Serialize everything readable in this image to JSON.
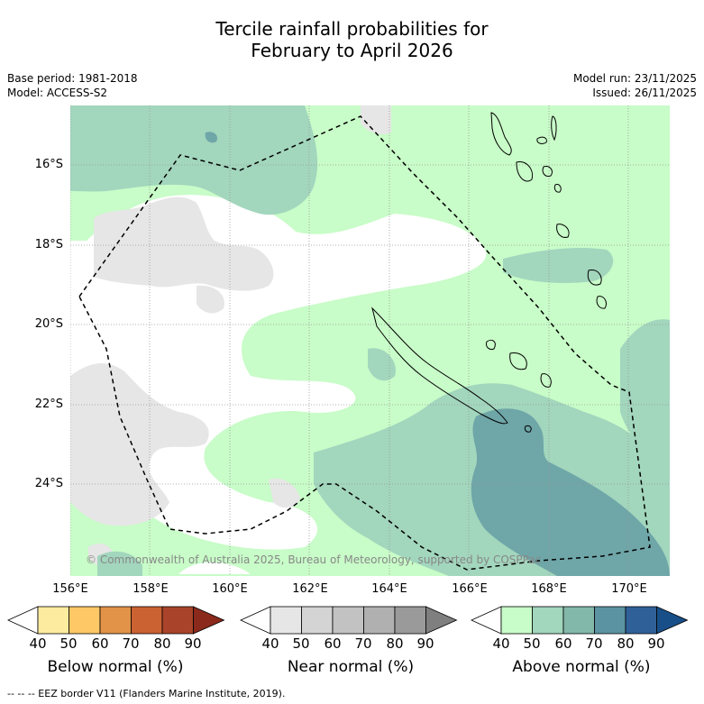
{
  "title_line1": "Tercile rainfall probabilities for",
  "title_line2": "February to April 2026",
  "base_period": "Base period: 1981-2018",
  "model": "Model: ACCESS-S2",
  "model_run": "Model run: 23/11/2025",
  "issued": "Issued: 26/11/2025",
  "copyright": "© Commonwealth of Australia 2025, Bureau of Meteorology, supported by COSPPac",
  "lat_labels": [
    "16°S",
    "18°S",
    "20°S",
    "22°S",
    "24°S"
  ],
  "lon_labels": [
    "156°E",
    "158°E",
    "160°E",
    "162°E",
    "164°E",
    "166°E",
    "168°E",
    "170°E"
  ],
  "colorbars": [
    {
      "title": "Below normal (%)",
      "ticks": [
        "40",
        "50",
        "60",
        "70",
        "80",
        "90"
      ],
      "colors": [
        "#ffffff",
        "#fdeca0",
        "#fdc865",
        "#e29348",
        "#cb6232",
        "#a9442a",
        "#8b2a1c"
      ]
    },
    {
      "title": "Near normal (%)",
      "ticks": [
        "40",
        "50",
        "60",
        "70",
        "80",
        "90"
      ],
      "colors": [
        "#ffffff",
        "#e6e6e6",
        "#d4d4d4",
        "#c2c2c2",
        "#b0b0b0",
        "#9a9a9a",
        "#7f7f7f"
      ]
    },
    {
      "title": "Above normal (%)",
      "ticks": [
        "40",
        "50",
        "60",
        "70",
        "80",
        "90"
      ],
      "colors": [
        "#ffffff",
        "#c8fcc8",
        "#a2d6bd",
        "#82b8aa",
        "#5b93a2",
        "#2f6198",
        "#194f88"
      ]
    }
  ],
  "footnote": "-- -- -- EEZ border V11 (Flanders Marine Institute, 2019).",
  "colors": {
    "above_50": "#c8fcc8",
    "above_60": "#a2d6bd",
    "above_70": "#6fa6a8",
    "near_50": "#e6e6e6",
    "land_outline": "#000000",
    "grid": "#999999"
  }
}
